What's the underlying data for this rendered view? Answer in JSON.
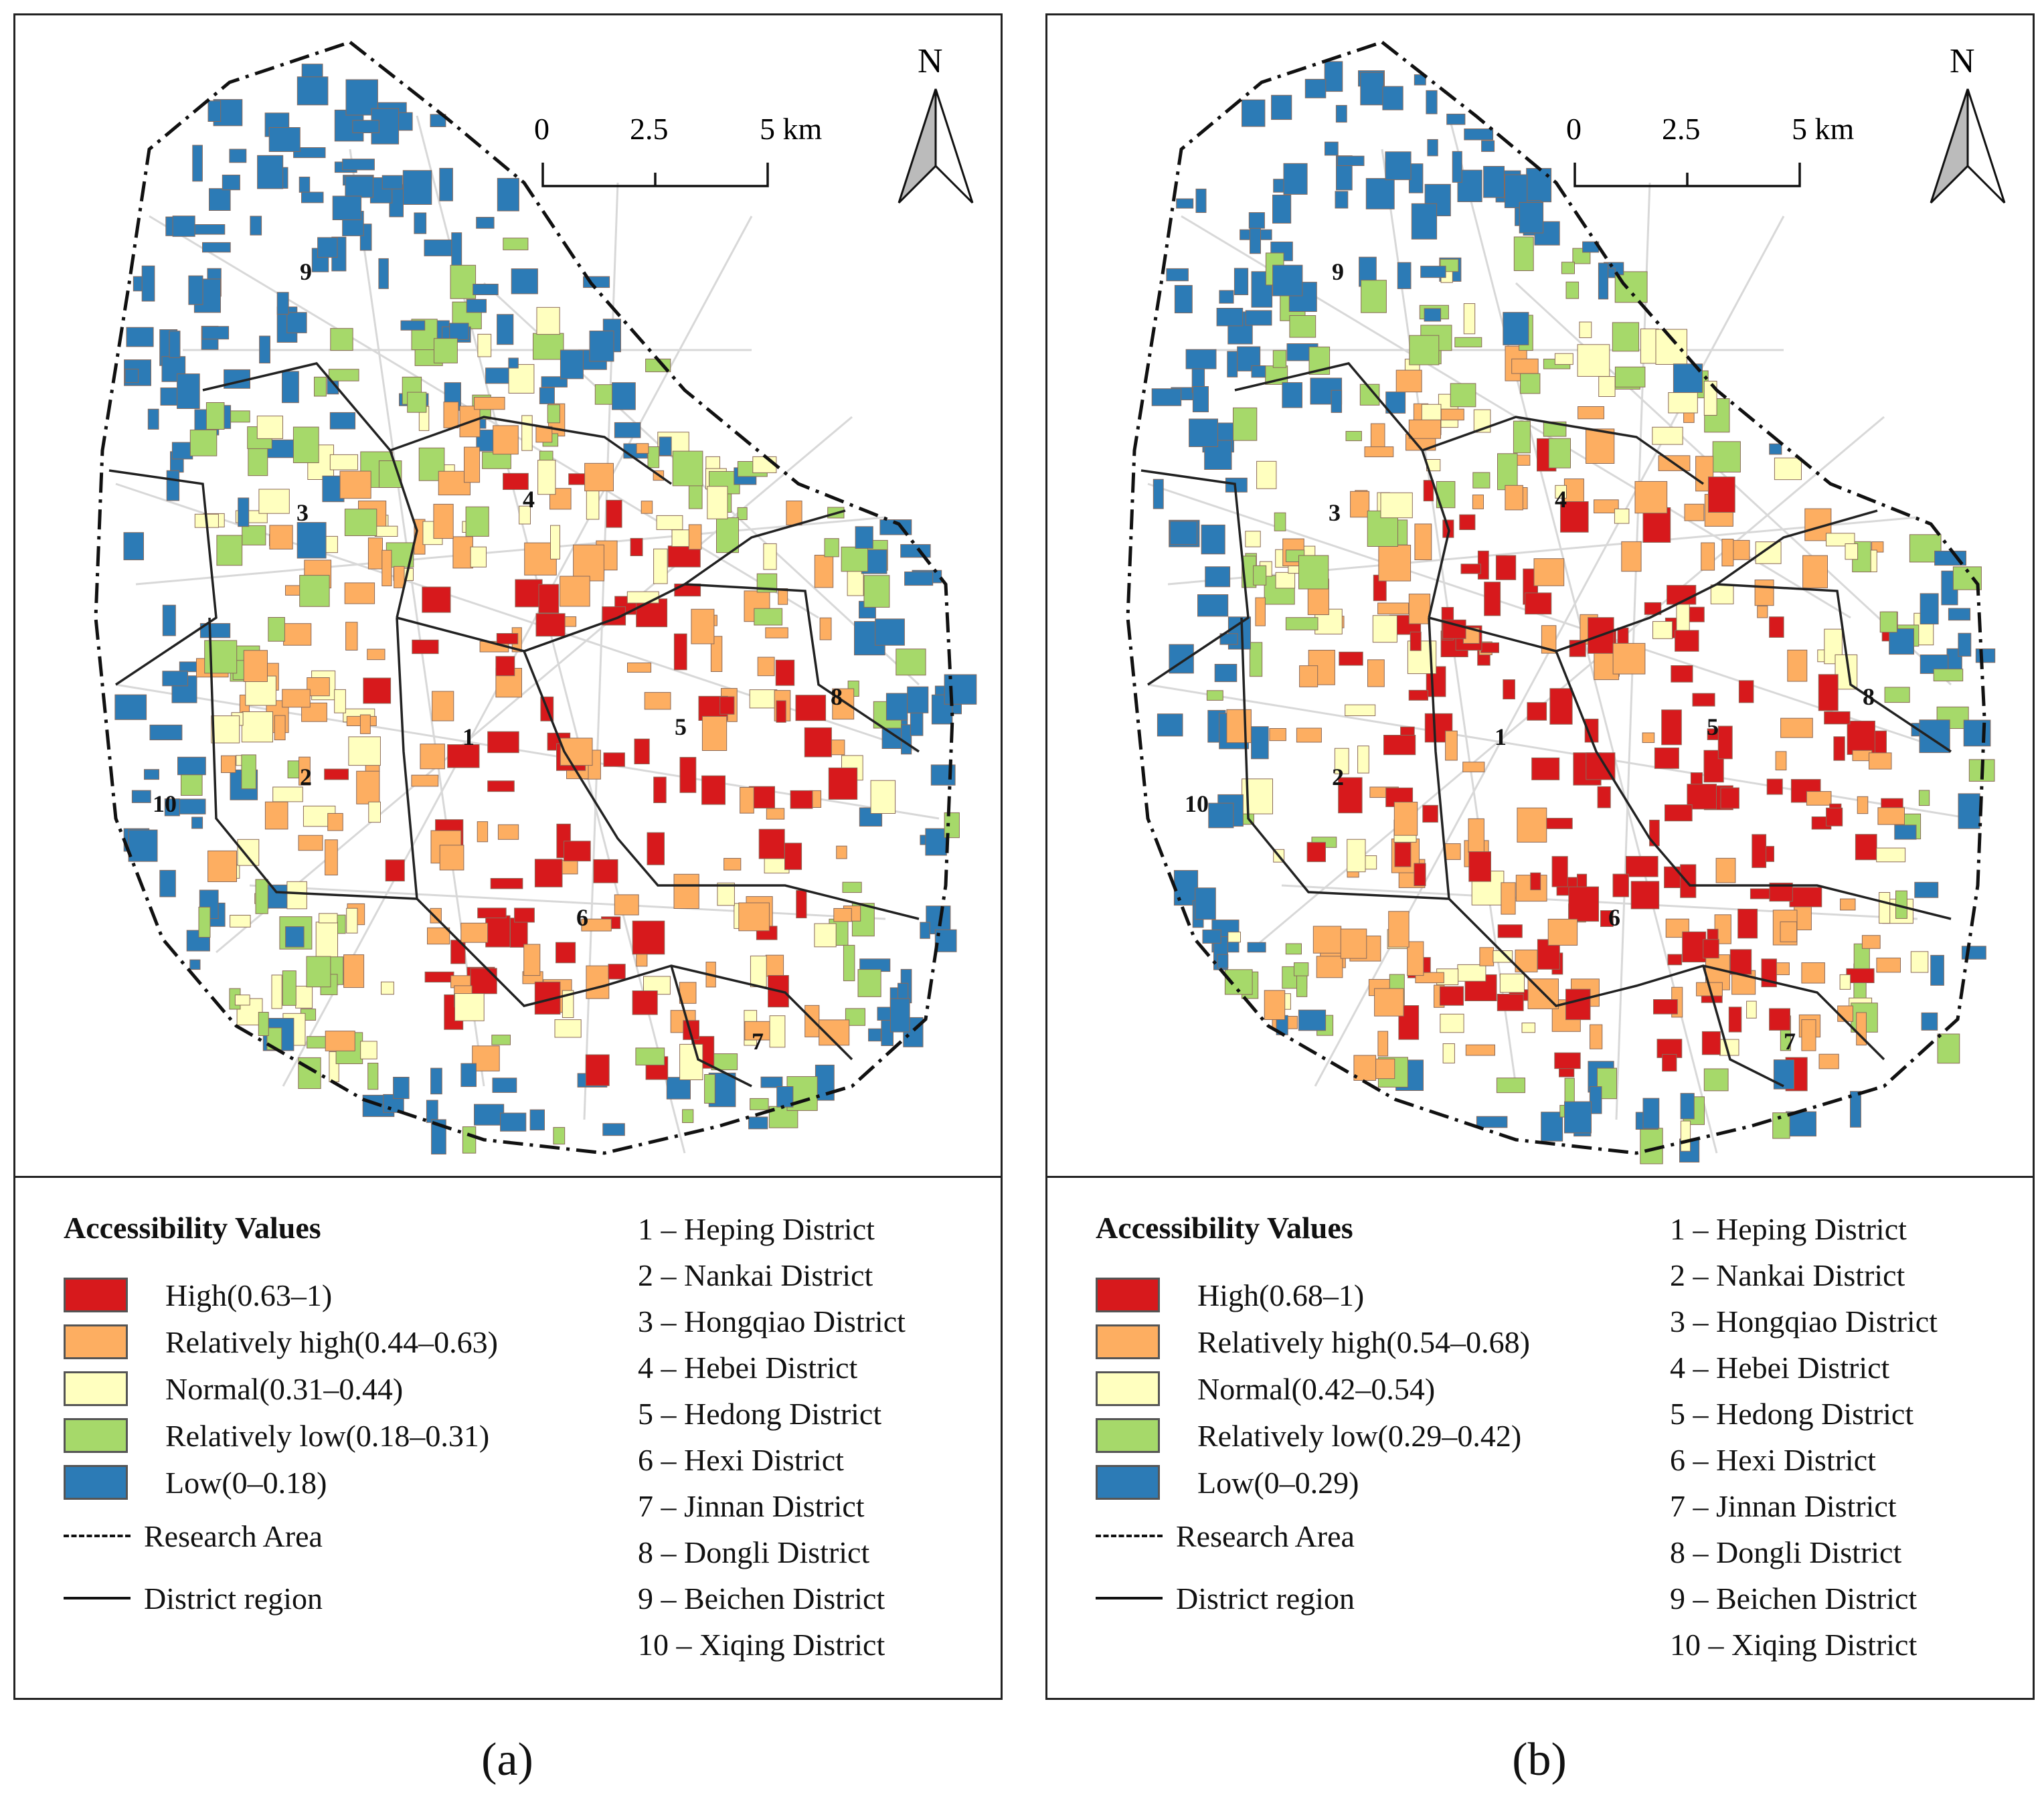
{
  "panels": [
    {
      "id": "a",
      "caption": "(a)",
      "north_label": "N",
      "scale_labels": [
        "0",
        "2.5",
        "5 km"
      ],
      "legend_title": "Accessibility Values",
      "classes": [
        {
          "label": "High(0.63–1)",
          "color": "#d7191c"
        },
        {
          "label": "Relatively high(0.44–0.63)",
          "color": "#fdae61"
        },
        {
          "label": "Normal(0.31–0.44)",
          "color": "#ffffbf"
        },
        {
          "label": "Relatively low(0.18–0.31)",
          "color": "#a6d96a"
        },
        {
          "label": "Low(0–0.18)",
          "color": "#2c7bb6"
        }
      ],
      "research_area_label": "Research Area",
      "district_region_label": "District region",
      "districts": [
        "1 – Heping District",
        "2 – Nankai District",
        "3 – Hongqiao District",
        "4 – Hebei District",
        "5 – Hedong District",
        "6 – Hexi District",
        "7 – Jinnan District",
        "8 – Dongli District",
        "9 – Beichen District",
        "10 – Xiqing District"
      ],
      "map_numbers": [
        "1",
        "2",
        "3",
        "4",
        "5",
        "6",
        "7",
        "8",
        "9",
        "10"
      ]
    },
    {
      "id": "b",
      "caption": "(b)",
      "north_label": "N",
      "scale_labels": [
        "0",
        "2.5",
        "5 km"
      ],
      "legend_title": "Accessibility Values",
      "classes": [
        {
          "label": "High(0.68–1)",
          "color": "#d7191c"
        },
        {
          "label": "Relatively high(0.54–0.68)",
          "color": "#fdae61"
        },
        {
          "label": "Normal(0.42–0.54)",
          "color": "#ffffbf"
        },
        {
          "label": "Relatively low(0.29–0.42)",
          "color": "#a6d96a"
        },
        {
          "label": "Low(0–0.29)",
          "color": "#2c7bb6"
        }
      ],
      "research_area_label": "Research Area",
      "district_region_label": "District region",
      "districts": [
        "1 – Heping District",
        "2 – Nankai District",
        "3 – Hongqiao District",
        "4 – Hebei District",
        "5 – Hedong District",
        "6 – Hexi District",
        "7 – Jinnan District",
        "8 – Dongli District",
        "9 – Beichen District",
        "10 – Xiqing District"
      ],
      "map_numbers": [
        "1",
        "2",
        "3",
        "4",
        "5",
        "6",
        "7",
        "8",
        "9",
        "10"
      ]
    }
  ]
}
